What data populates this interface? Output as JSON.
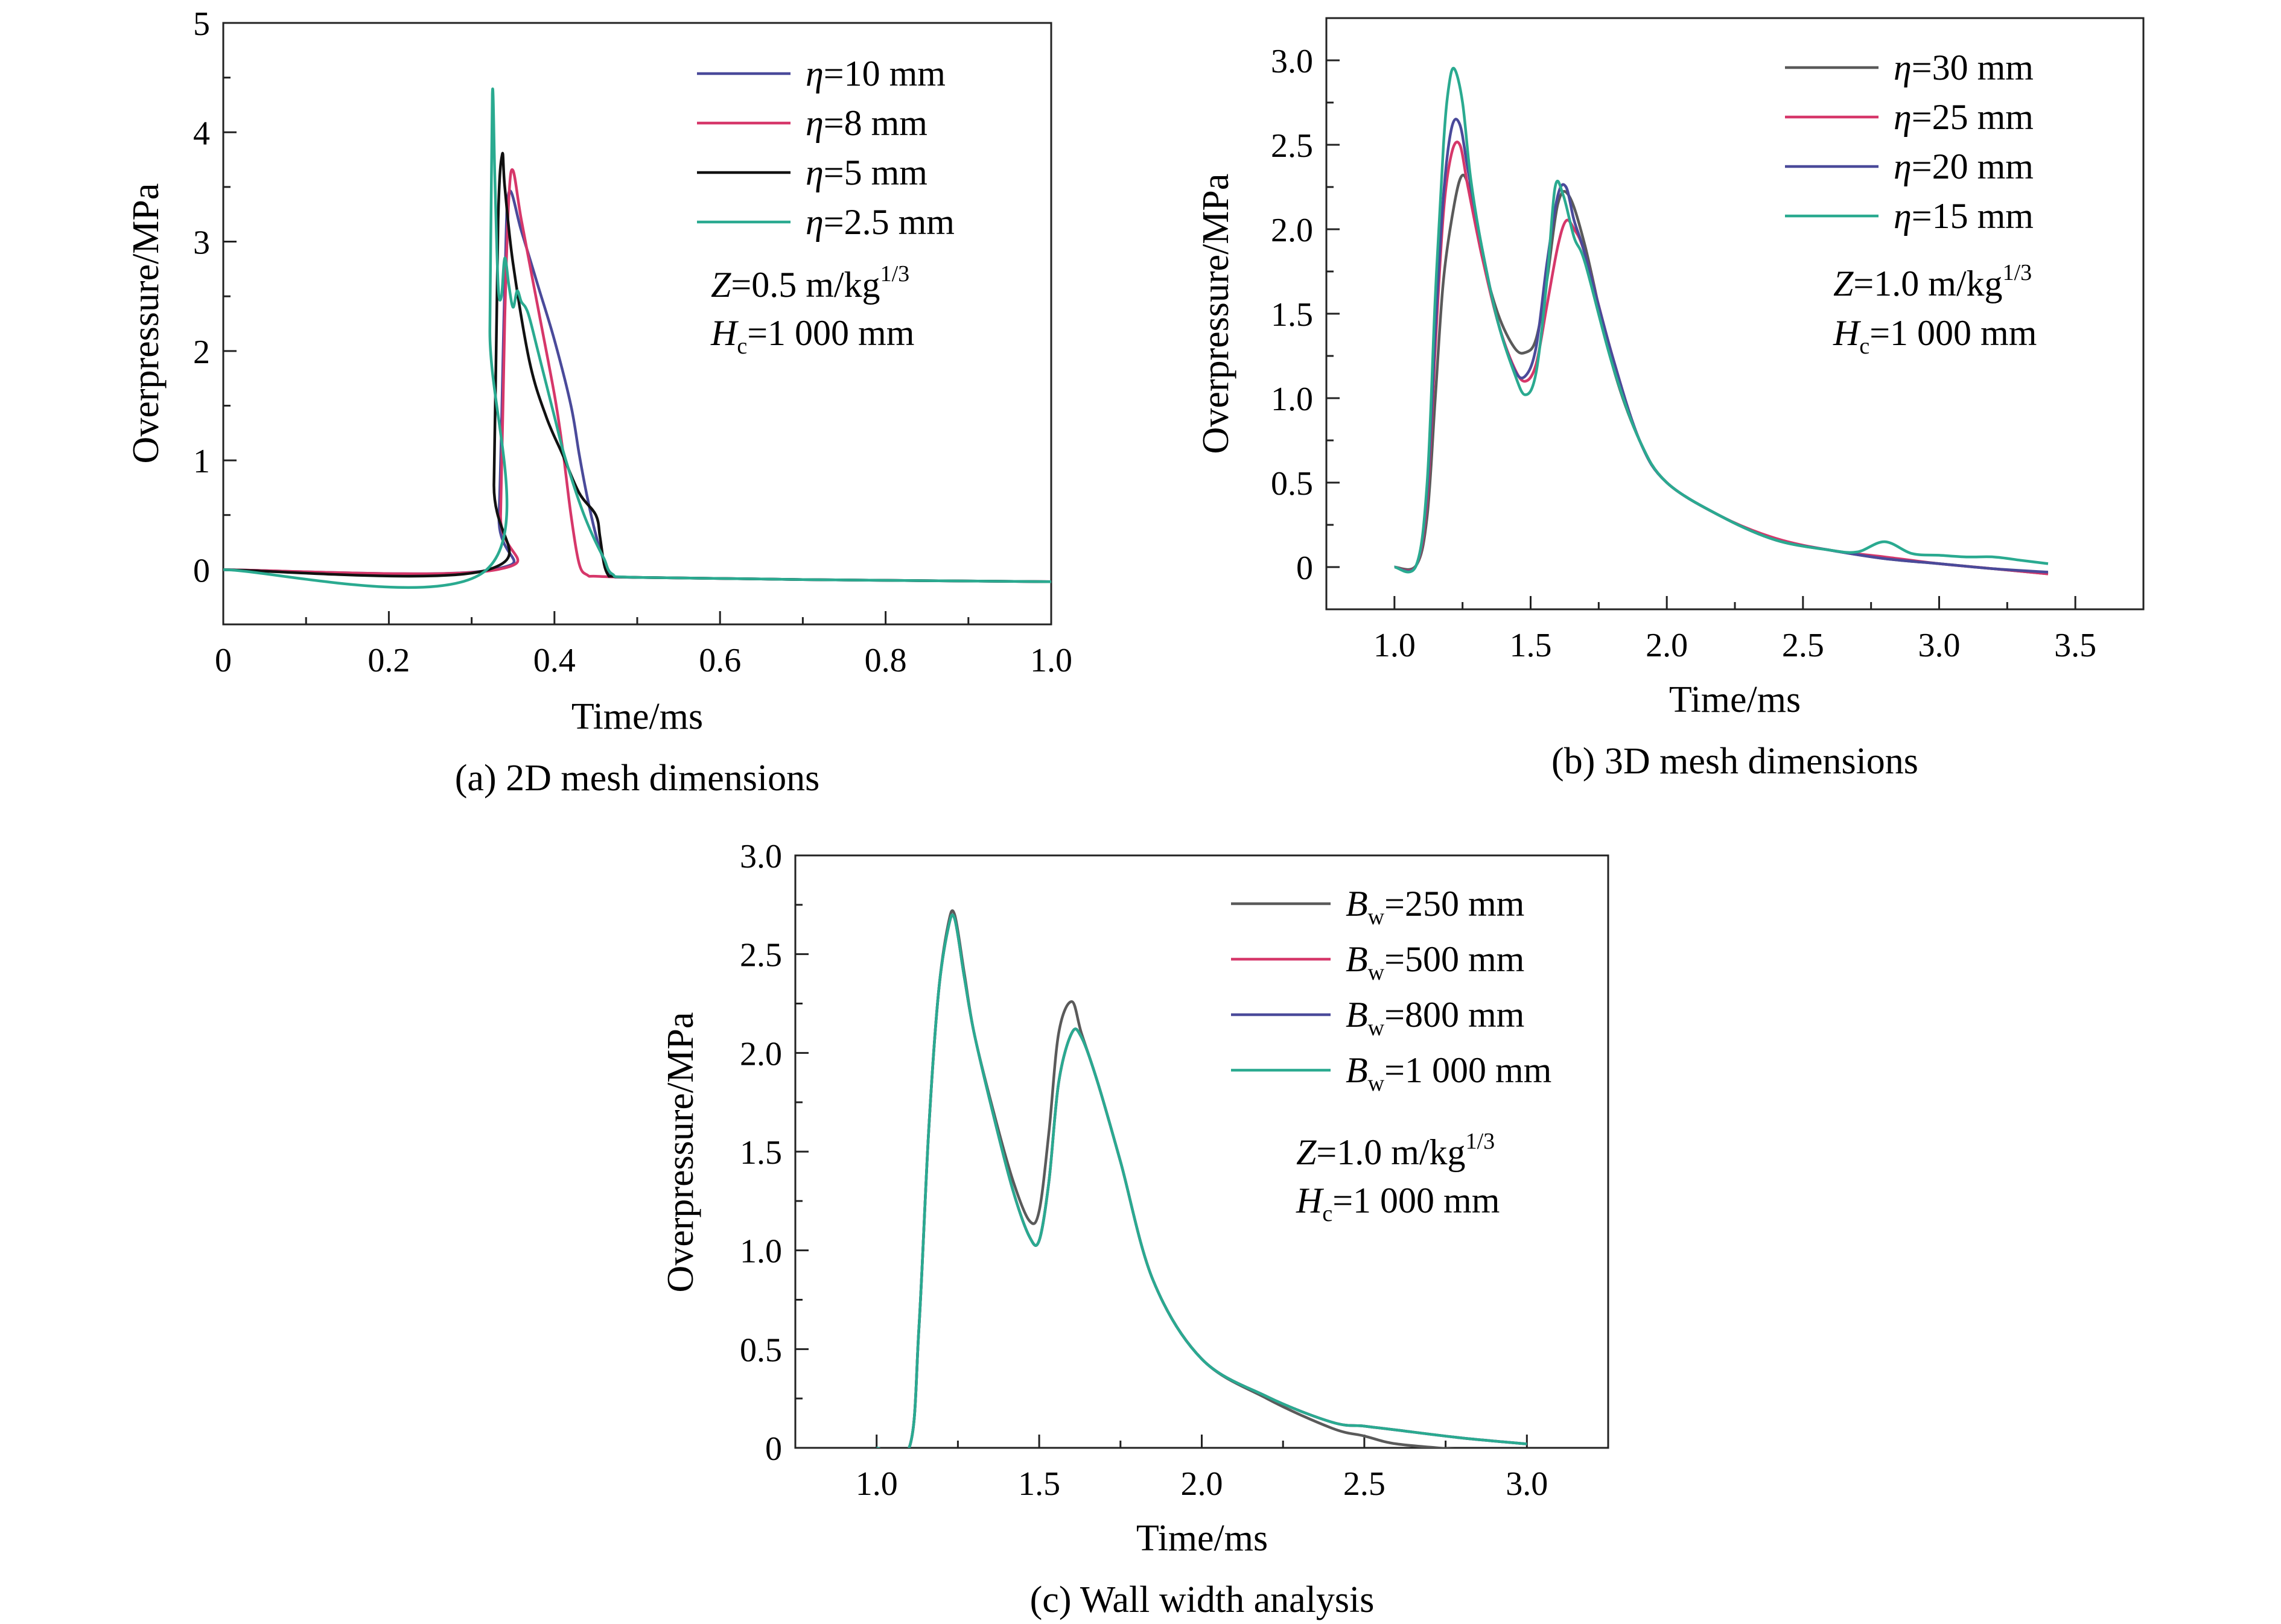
{
  "chart_data": [
    {
      "type": "line",
      "id": "a",
      "caption": "(a) 2D mesh dimensions",
      "xlabel": "Time/ms",
      "ylabel": "Overpressure/MPa",
      "xlim": [
        0,
        1.0
      ],
      "ylim": [
        -0.5,
        5
      ],
      "xticks": [
        0,
        0.2,
        0.4,
        0.6,
        0.8,
        1.0
      ],
      "xtick_labels": [
        "0",
        "0.2",
        "0.4",
        "0.6",
        "0.8",
        "1.0"
      ],
      "yticks": [
        0,
        1,
        2,
        3,
        4,
        5
      ],
      "ytick_labels": [
        "0",
        "1",
        "2",
        "3",
        "4",
        "5"
      ],
      "legend_position": "top-right",
      "annotations": {
        "z": {
          "var": "Z",
          "rest": "=0.5 m/kg",
          "sup": "1/3"
        },
        "h": {
          "var": "H",
          "sub": "c",
          "rest": "=1 000 mm"
        }
      },
      "series": [
        {
          "name": "η=10 mm",
          "sym": "η",
          "label": "=10 mm",
          "color": "#4a4a9a",
          "x": [
            0,
            0.325,
            0.333,
            0.34,
            0.345,
            0.36,
            0.38,
            0.4,
            0.42,
            0.43,
            0.44,
            0.45,
            0.46,
            0.47,
            0.5,
            0.7,
            1.0
          ],
          "y": [
            0,
            0,
            0.5,
            2.6,
            3.45,
            3.1,
            2.6,
            2.1,
            1.5,
            1.05,
            0.65,
            0.32,
            0.08,
            -0.05,
            -0.07,
            -0.09,
            -0.11
          ]
        },
        {
          "name": "η=8 mm",
          "sym": "η",
          "label": "=8 mm",
          "color": "#d6376a",
          "x": [
            0,
            0.33,
            0.335,
            0.34,
            0.345,
            0.35,
            0.36,
            0.38,
            0.4,
            0.41,
            0.42,
            0.43,
            0.44,
            0.45,
            0.5,
            0.7,
            1.0
          ],
          "y": [
            0,
            0,
            0.5,
            2.3,
            3.4,
            3.65,
            3.2,
            2.4,
            1.6,
            1.1,
            0.5,
            0.05,
            -0.05,
            -0.06,
            -0.07,
            -0.09,
            -0.11
          ]
        },
        {
          "name": "η=5 mm",
          "sym": "η",
          "label": "=5 mm",
          "color": "#111111",
          "x": [
            0,
            0.32,
            0.327,
            0.332,
            0.337,
            0.34,
            0.35,
            0.37,
            0.39,
            0.41,
            0.43,
            0.45,
            0.455,
            0.46,
            0.465,
            0.47,
            0.5,
            0.7,
            1.0
          ],
          "y": [
            0,
            0,
            0.8,
            3.2,
            3.8,
            3.5,
            2.8,
            1.9,
            1.4,
            1.05,
            0.7,
            0.5,
            0.3,
            0.05,
            -0.05,
            -0.06,
            -0.07,
            -0.09,
            -0.11
          ]
        },
        {
          "name": "η=2.5 mm",
          "sym": "η",
          "label": "=2.5 mm",
          "color": "#2aaa90",
          "x": [
            0,
            0.318,
            0.322,
            0.325,
            0.328,
            0.332,
            0.336,
            0.34,
            0.345,
            0.35,
            0.355,
            0.36,
            0.365,
            0.37,
            0.38,
            0.39,
            0.4,
            0.41,
            0.42,
            0.43,
            0.44,
            0.45,
            0.46,
            0.47,
            0.5,
            0.7,
            1.0
          ],
          "y": [
            0,
            0,
            2.2,
            4.35,
            3.6,
            2.6,
            2.5,
            2.85,
            2.6,
            2.4,
            2.55,
            2.45,
            2.4,
            2.3,
            2.0,
            1.7,
            1.4,
            1.1,
            0.85,
            0.62,
            0.42,
            0.25,
            0.1,
            -0.04,
            -0.07,
            -0.09,
            -0.11
          ]
        }
      ]
    },
    {
      "type": "line",
      "id": "b",
      "caption": "(b) 3D mesh dimensions",
      "xlabel": "Time/ms",
      "ylabel": "Overpressure/MPa",
      "xlim": [
        0.75,
        3.75
      ],
      "ylim": [
        -0.25,
        3.25
      ],
      "xticks": [
        1.0,
        1.5,
        2.0,
        2.5,
        3.0,
        3.5
      ],
      "xtick_labels": [
        "1.0",
        "1.5",
        "2.0",
        "2.5",
        "3.0",
        "3.5"
      ],
      "yticks": [
        0,
        0.5,
        1.0,
        1.5,
        2.0,
        2.5,
        3.0
      ],
      "ytick_labels": [
        "0",
        "0.5",
        "1.0",
        "1.5",
        "2.0",
        "2.5",
        "3.0"
      ],
      "legend_position": "top-right",
      "annotations": {
        "z": {
          "var": "Z",
          "rest": "=1.0 m/kg",
          "sup": "1/3"
        },
        "h": {
          "var": "H",
          "sub": "c",
          "rest": "=1 000 mm"
        }
      },
      "series": [
        {
          "name": "η=30 mm",
          "sym": "η",
          "label": "=30 mm",
          "color": "#5a5a5a",
          "x": [
            1.0,
            1.08,
            1.12,
            1.15,
            1.18,
            1.22,
            1.25,
            1.28,
            1.32,
            1.38,
            1.44,
            1.48,
            1.52,
            1.56,
            1.6,
            1.64,
            1.7,
            1.8,
            1.9,
            2.0,
            2.2,
            2.4,
            2.6,
            2.8,
            3.0,
            3.2,
            3.4
          ],
          "y": [
            0,
            0.01,
            0.3,
            1.0,
            1.7,
            2.15,
            2.32,
            2.2,
            1.85,
            1.5,
            1.3,
            1.27,
            1.35,
            1.7,
            2.15,
            2.2,
            1.9,
            1.2,
            0.75,
            0.5,
            0.3,
            0.16,
            0.1,
            0.05,
            0.02,
            -0.01,
            -0.04
          ]
        },
        {
          "name": "η=25 mm",
          "sym": "η",
          "label": "=25 mm",
          "color": "#d6376a",
          "x": [
            1.0,
            1.08,
            1.12,
            1.15,
            1.18,
            1.21,
            1.24,
            1.27,
            1.32,
            1.38,
            1.44,
            1.48,
            1.52,
            1.56,
            1.6,
            1.63,
            1.66,
            1.7,
            1.8,
            1.9,
            2.0,
            2.2,
            2.4,
            2.6,
            2.8,
            3.0,
            3.2,
            3.4
          ],
          "y": [
            0,
            0.01,
            0.4,
            1.3,
            2.1,
            2.45,
            2.5,
            2.25,
            1.85,
            1.45,
            1.18,
            1.1,
            1.2,
            1.55,
            1.9,
            2.05,
            2.0,
            1.85,
            1.25,
            0.75,
            0.5,
            0.3,
            0.17,
            0.1,
            0.06,
            0.02,
            -0.01,
            -0.04
          ]
        },
        {
          "name": "η=20 mm",
          "sym": "η",
          "label": "=20 mm",
          "color": "#4a4a9a",
          "x": [
            1.0,
            1.08,
            1.12,
            1.15,
            1.18,
            1.21,
            1.24,
            1.27,
            1.32,
            1.38,
            1.44,
            1.48,
            1.52,
            1.56,
            1.6,
            1.63,
            1.66,
            1.7,
            1.8,
            1.9,
            2.0,
            2.2,
            2.4,
            2.6,
            2.8,
            3.0,
            3.2,
            3.4
          ],
          "y": [
            0,
            0.01,
            0.45,
            1.4,
            2.2,
            2.6,
            2.62,
            2.35,
            1.9,
            1.45,
            1.17,
            1.13,
            1.3,
            1.8,
            2.2,
            2.25,
            2.05,
            1.85,
            1.25,
            0.75,
            0.5,
            0.3,
            0.16,
            0.1,
            0.05,
            0.02,
            -0.01,
            -0.03
          ]
        },
        {
          "name": "η=15 mm",
          "sym": "η",
          "label": "=15 mm",
          "color": "#2aaa90",
          "x": [
            1.0,
            1.08,
            1.12,
            1.15,
            1.18,
            1.2,
            1.22,
            1.25,
            1.28,
            1.32,
            1.38,
            1.44,
            1.48,
            1.52,
            1.56,
            1.59,
            1.62,
            1.66,
            1.7,
            1.8,
            1.9,
            2.0,
            2.2,
            2.4,
            2.6,
            2.7,
            2.8,
            2.9,
            3.0,
            3.1,
            3.2,
            3.3,
            3.4
          ],
          "y": [
            0,
            0.01,
            0.5,
            1.6,
            2.5,
            2.85,
            2.95,
            2.75,
            2.3,
            1.9,
            1.45,
            1.15,
            1.02,
            1.15,
            1.7,
            2.25,
            2.2,
            1.95,
            1.8,
            1.2,
            0.75,
            0.5,
            0.3,
            0.16,
            0.1,
            0.09,
            0.15,
            0.08,
            0.07,
            0.06,
            0.06,
            0.04,
            0.02
          ]
        }
      ]
    },
    {
      "type": "line",
      "id": "c",
      "caption": "(c) Wall width analysis",
      "xlabel": "Time/ms",
      "ylabel": "Overpressure/MPa",
      "xlim": [
        0.75,
        3.25
      ],
      "ylim": [
        0,
        3.0
      ],
      "xticks": [
        1.0,
        1.5,
        2.0,
        2.5,
        3.0
      ],
      "xtick_labels": [
        "1.0",
        "1.5",
        "2.0",
        "2.5",
        "3.0"
      ],
      "yticks": [
        0,
        0.5,
        1.0,
        1.5,
        2.0,
        2.5,
        3.0
      ],
      "ytick_labels": [
        "0",
        "0.5",
        "1.0",
        "1.5",
        "2.0",
        "2.5",
        "3.0"
      ],
      "legend_position": "top-right",
      "annotations": {
        "z": {
          "var": "Z",
          "rest": "=1.0 m/kg",
          "sup": "1/3"
        },
        "h": {
          "var": "H",
          "sub": "c",
          "rest": "=1 000 mm"
        }
      },
      "series": [
        {
          "name": "Bw=250 mm",
          "sym": "B",
          "sub": "w",
          "label": "=250 mm",
          "color": "#5a5a5a",
          "x": [
            1.0,
            1.1,
            1.13,
            1.16,
            1.19,
            1.22,
            1.24,
            1.27,
            1.3,
            1.36,
            1.42,
            1.47,
            1.5,
            1.53,
            1.56,
            1.6,
            1.63,
            1.68,
            1.75,
            1.85,
            2.0,
            2.2,
            2.4,
            2.5,
            2.6,
            2.8,
            3.0
          ],
          "y": [
            0,
            0,
            0.6,
            1.6,
            2.3,
            2.65,
            2.7,
            2.4,
            2.1,
            1.7,
            1.35,
            1.15,
            1.2,
            1.6,
            2.1,
            2.26,
            2.1,
            1.85,
            1.45,
            0.85,
            0.45,
            0.25,
            0.1,
            0.06,
            0.02,
            -0.01,
            -0.04
          ]
        },
        {
          "name": "Bw=500 mm",
          "sym": "B",
          "sub": "w",
          "label": "=500 mm",
          "color": "#d6376a",
          "x": [
            1.0,
            1.1,
            1.13,
            1.16,
            1.19,
            1.22,
            1.24,
            1.27,
            1.3,
            1.36,
            1.42,
            1.47,
            1.5,
            1.53,
            1.56,
            1.6,
            1.63,
            1.68,
            1.75,
            1.85,
            2.0,
            2.2,
            2.4,
            2.5,
            2.6,
            2.8,
            3.0
          ],
          "y": [
            0,
            0,
            0.6,
            1.6,
            2.3,
            2.63,
            2.68,
            2.38,
            2.1,
            1.68,
            1.3,
            1.07,
            1.05,
            1.35,
            1.85,
            2.1,
            2.08,
            1.85,
            1.45,
            0.85,
            0.45,
            0.26,
            0.13,
            0.11,
            0.09,
            0.05,
            0.02
          ]
        },
        {
          "name": "Bw=800 mm",
          "sym": "B",
          "sub": "w",
          "label": "=800 mm",
          "color": "#4a4a9a",
          "x": [
            1.0,
            1.1,
            1.13,
            1.16,
            1.19,
            1.22,
            1.24,
            1.27,
            1.3,
            1.36,
            1.42,
            1.47,
            1.5,
            1.53,
            1.56,
            1.6,
            1.63,
            1.68,
            1.75,
            1.85,
            2.0,
            2.2,
            2.4,
            2.5,
            2.6,
            2.8,
            3.0
          ],
          "y": [
            0,
            0,
            0.6,
            1.6,
            2.3,
            2.63,
            2.68,
            2.38,
            2.1,
            1.68,
            1.3,
            1.07,
            1.05,
            1.35,
            1.85,
            2.1,
            2.08,
            1.85,
            1.45,
            0.85,
            0.45,
            0.26,
            0.13,
            0.11,
            0.09,
            0.05,
            0.02
          ]
        },
        {
          "name": "Bw=1 000 mm",
          "sym": "B",
          "sub": "w",
          "label": "=1 000 mm",
          "color": "#2aaa90",
          "x": [
            1.0,
            1.1,
            1.13,
            1.16,
            1.19,
            1.22,
            1.24,
            1.27,
            1.3,
            1.36,
            1.42,
            1.47,
            1.5,
            1.53,
            1.56,
            1.6,
            1.63,
            1.68,
            1.75,
            1.85,
            2.0,
            2.2,
            2.4,
            2.5,
            2.6,
            2.8,
            3.0
          ],
          "y": [
            0,
            0,
            0.6,
            1.6,
            2.3,
            2.63,
            2.68,
            2.38,
            2.1,
            1.68,
            1.3,
            1.07,
            1.05,
            1.35,
            1.85,
            2.1,
            2.08,
            1.85,
            1.45,
            0.85,
            0.45,
            0.26,
            0.13,
            0.11,
            0.09,
            0.05,
            0.02
          ]
        }
      ]
    }
  ]
}
